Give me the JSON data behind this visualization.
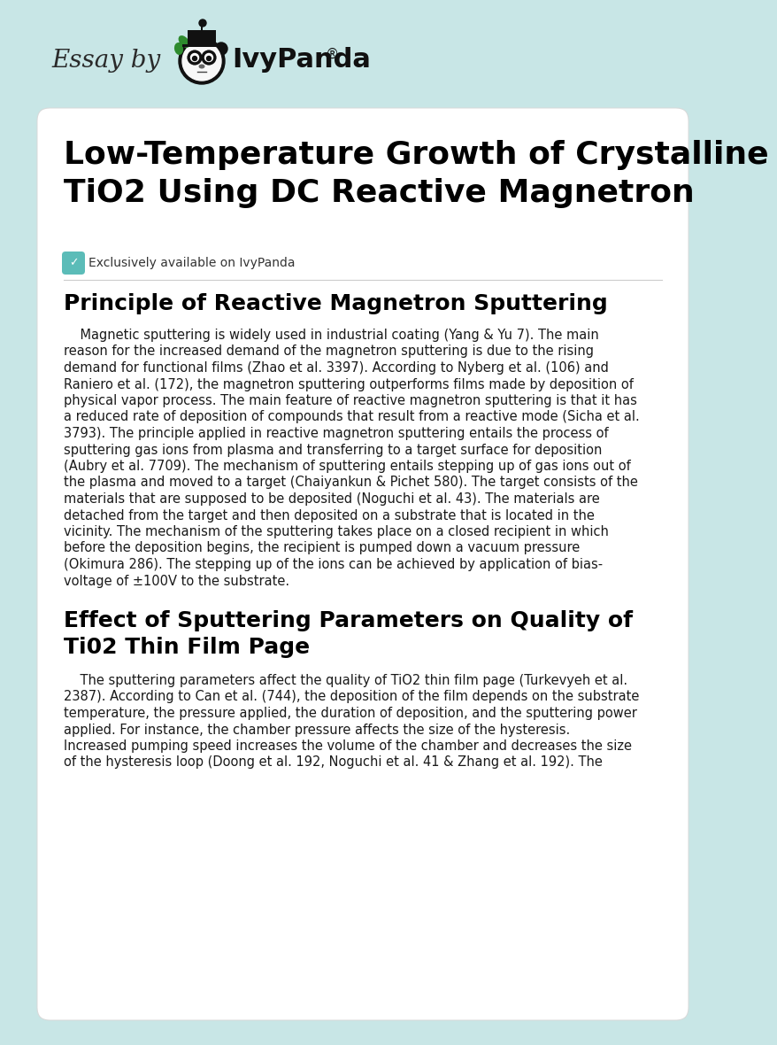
{
  "bg_color": "#c8e6e6",
  "card_color": "#ffffff",
  "title_text": "Low-Temperature Growth of Crystalline\nTiO2 Using DC Reactive Magnetron",
  "exclusive_text": "Exclusively available on IvyPanda",
  "section1_heading": "Principle of Reactive Magnetron Sputtering",
  "section1_body_lines": [
    "    Magnetic sputtering is widely used in industrial coating (Yang & Yu 7). The main",
    "reason for the increased demand of the magnetron sputtering is due to the rising",
    "demand for functional films (Zhao et al. 3397). According to Nyberg et al. (106) and",
    "Raniero et al. (172), the magnetron sputtering outperforms films made by deposition of",
    "physical vapor process. The main feature of reactive magnetron sputtering is that it has",
    "a reduced rate of deposition of compounds that result from a reactive mode (Sicha et al.",
    "3793). The principle applied in reactive magnetron sputtering entails the process of",
    "sputtering gas ions from plasma and transferring to a target surface for deposition",
    "(Aubry et al. 7709). The mechanism of sputtering entails stepping up of gas ions out of",
    "the plasma and moved to a target (Chaiyankun & Pichet 580). The target consists of the",
    "materials that are supposed to be deposited (Noguchi et al. 43). The materials are",
    "detached from the target and then deposited on a substrate that is located in the",
    "vicinity. The mechanism of the sputtering takes place on a closed recipient in which",
    "before the deposition begins, the recipient is pumped down a vacuum pressure",
    "(Okimura 286). The stepping up of the ions can be achieved by application of bias-",
    "voltage of ±100V to the substrate."
  ],
  "section2_heading": "Effect of Sputtering Parameters on Quality of\nTi02 Thin Film Page",
  "section2_body_lines": [
    "    The sputtering parameters affect the quality of TiO2 thin film page (Turkevyeh et al.",
    "2387). According to Can et al. (744), the deposition of the film depends on the substrate",
    "temperature, the pressure applied, the duration of deposition, and the sputtering power",
    "applied. For instance, the chamber pressure affects the size of the hysteresis.",
    "Increased pumping speed increases the volume of the chamber and decreases the size",
    "of the hysteresis loop (Doong et al. 192, Noguchi et al. 41 & Zhang et al. 192). The"
  ],
  "checkmark_color": "#5bbcb8",
  "heading_color": "#000000",
  "body_color": "#1a1a1a",
  "divider_color": "#cccccc",
  "essay_by": "Essay by",
  "ivy_panda": "IvyPanda",
  "reg_mark": "®"
}
